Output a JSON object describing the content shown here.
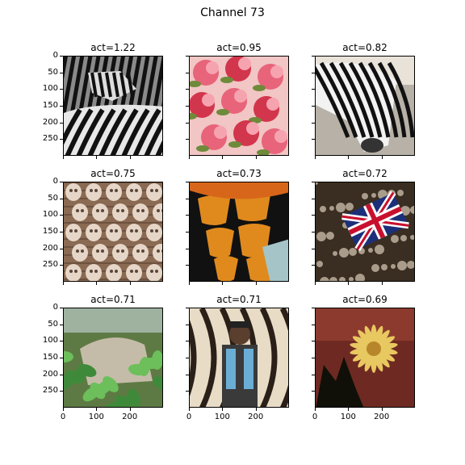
{
  "title": "Channel 73",
  "chart_data": {
    "type": "image-grid",
    "title": "Channel 73",
    "rows": 3,
    "cols": 3,
    "image_extent": [
      0,
      300
    ],
    "yticks": [
      0,
      50,
      100,
      150,
      200,
      250
    ],
    "xticks": [
      0,
      100,
      200
    ],
    "panels": [
      {
        "title": "act=1.22",
        "act": 1.22,
        "image": "zebra-icon"
      },
      {
        "title": "act=0.95",
        "act": 0.95,
        "image": "floral-fabric-icon"
      },
      {
        "title": "act=0.82",
        "act": 0.82,
        "image": "zebra-grazing-icon"
      },
      {
        "title": "act=0.75",
        "act": 0.75,
        "image": "cookie-tray-icon"
      },
      {
        "title": "act=0.73",
        "act": 0.73,
        "image": "butterfly-wing-icon"
      },
      {
        "title": "act=0.72",
        "act": 0.72,
        "image": "union-jack-icon"
      },
      {
        "title": "act=0.71",
        "act": 0.71,
        "image": "rocks-leaves-icon"
      },
      {
        "title": "act=0.71",
        "act": 0.71,
        "image": "man-mural-icon"
      },
      {
        "title": "act=0.69",
        "act": 0.69,
        "image": "flower-icon"
      }
    ]
  }
}
